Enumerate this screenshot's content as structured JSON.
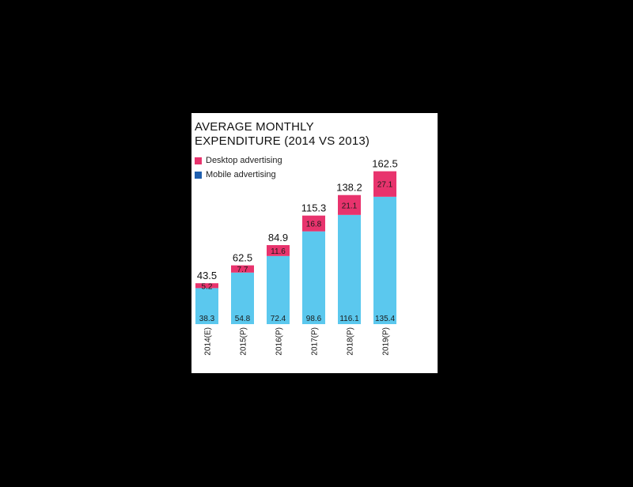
{
  "chart_data": {
    "type": "bar",
    "stacked": true,
    "title_lines": [
      "AVERAGE MONTHLY",
      "EXPENDITURE (2014 VS 2013)"
    ],
    "categories": [
      "2014(E)",
      "2015(P)",
      "2016(P)",
      "2017(P)",
      "2018(P)",
      "2019(P)"
    ],
    "series": [
      {
        "name": "Mobile advertising",
        "color": "#5bc8ee",
        "values": [
          38.3,
          54.8,
          72.4,
          98.6,
          116.1,
          135.4
        ]
      },
      {
        "name": "Desktop advertising",
        "color": "#e8336d",
        "values": [
          5.2,
          7.7,
          11.6,
          16.8,
          21.1,
          27.1
        ]
      }
    ],
    "totals": [
      43.5,
      62.5,
      84.9,
      115.3,
      138.2,
      162.5
    ],
    "legend_position": "top-left",
    "grid": false,
    "ylim": [
      0,
      162.5
    ]
  }
}
